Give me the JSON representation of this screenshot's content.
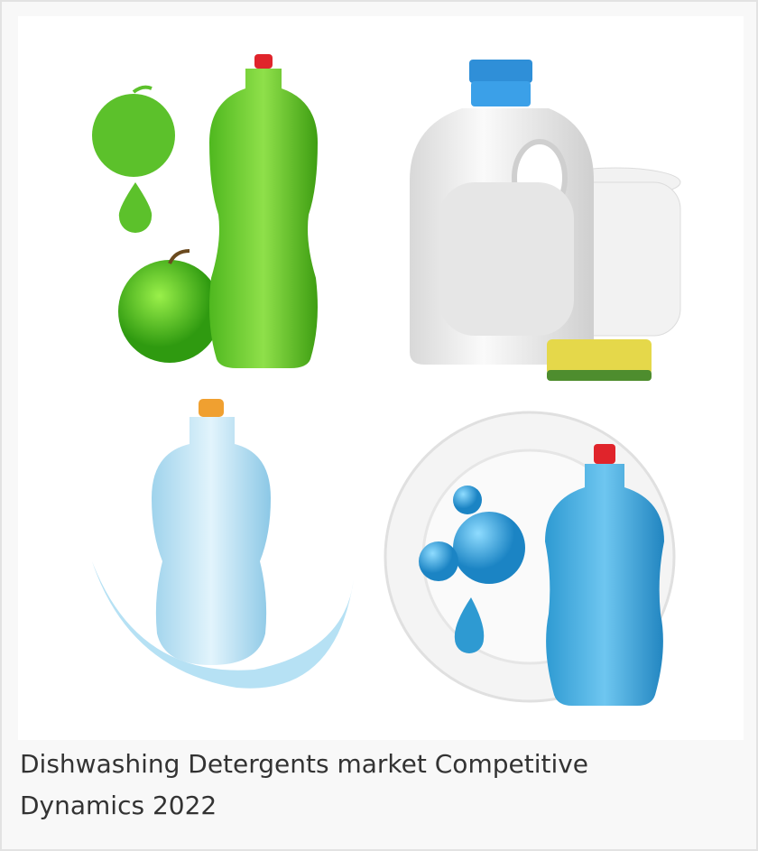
{
  "figure": {
    "caption": "Dishwashing Detergents market Competitive Dynamics 2022"
  }
}
